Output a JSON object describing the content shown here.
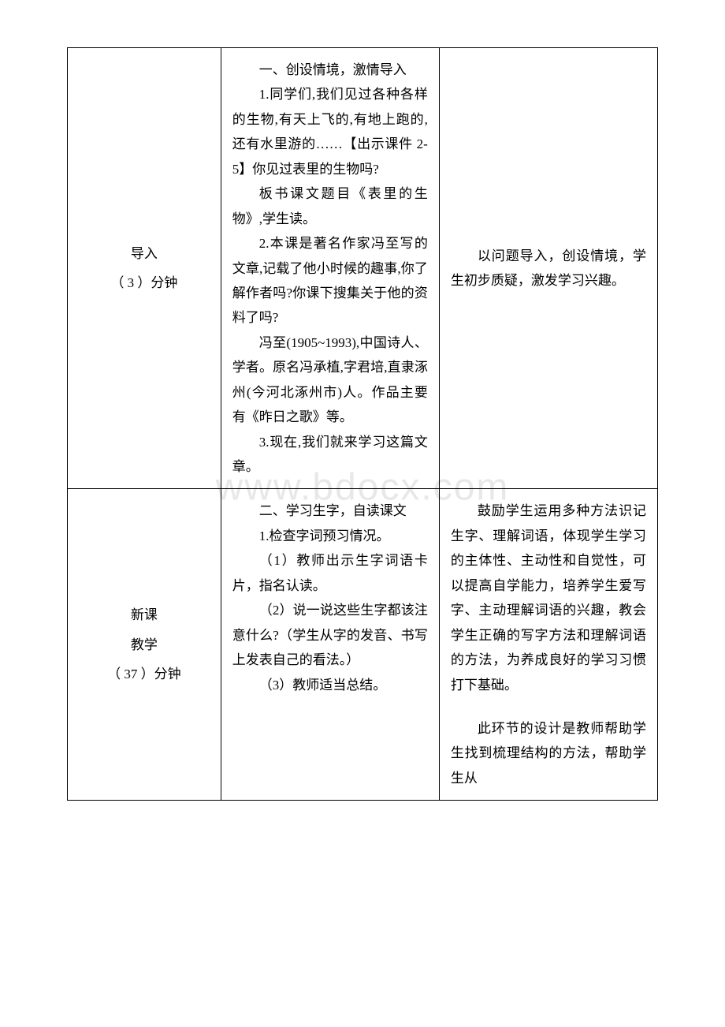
{
  "watermark": "www.bdocx.com",
  "table": {
    "border_color": "#000000",
    "background_color": "#ffffff",
    "text_color": "#000000",
    "font_size_pt": 13,
    "line_height": 1.85,
    "columns": [
      "section",
      "content",
      "note"
    ],
    "col_widths_percent": [
      26,
      37,
      37
    ]
  },
  "row1": {
    "section_line1": "导入",
    "section_line2": "（ 3 ）分钟",
    "heading": "一、创设情境，激情导入",
    "p1": "1.同学们,我们见过各种各样的生物,有天上飞的,有地上跑的,还有水里游的……【出示课件 2-5】你见过表里的生物吗?",
    "p2": "板书课文题目《表里的生物》,学生读。",
    "p3": "2.本课是著名作家冯至写的文章,记载了他小时候的趣事,你了解作者吗?你课下搜集关于他的资料了吗?",
    "p4": "冯至(1905~1993),中国诗人、学者。原名冯承植,字君培,直隶涿州(今河北涿州市)人。作品主要有《昨日之歌》等。",
    "p5": "3.现在,我们就来学习这篇文章。",
    "note": "以问题导入，创设情境，学生初步质疑，激发学习兴趣。"
  },
  "row2": {
    "section_line1": "新课",
    "section_line2": "教学",
    "section_line3": "（ 37  ）分钟",
    "heading": "二、学习生字，自读课文",
    "p1": "1.检查字词预习情况。",
    "p2": "（1）教师出示生字词语卡片，指名认读。",
    "p3": "（2）说一说这些生字都该注意什么?（学生从字的发音、书写上发表自己的看法。）",
    "p4": "（3）教师适当总结。",
    "note1": "鼓励学生运用多种方法识记生字、理解词语，体现学生学习的主体性、主动性和自觉性，可以提高自学能力，培养学生爱写字、主动理解词语的兴趣，教会学生正确的写字方法和理解词语的方法，为养成良好的学习习惯打下基础。",
    "note2": "此环节的设计是教师帮助学生找到梳理结构的方法，帮助学生从"
  }
}
